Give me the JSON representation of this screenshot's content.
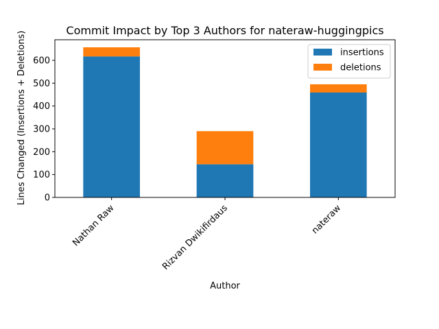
{
  "chart_data": {
    "type": "bar",
    "stacked": true,
    "title": "Commit Impact by Top 3 Authors for nateraw-huggingpics",
    "xlabel": "Author",
    "ylabel": "Lines Changed (Insertions + Deletions)",
    "categories": [
      "Nathan Raw",
      "Rizvan Dwikifirdaus",
      "nateraw"
    ],
    "series": [
      {
        "name": "insertions",
        "values": [
          617,
          145,
          459
        ],
        "color": "#1f77b4"
      },
      {
        "name": "deletions",
        "values": [
          40,
          145,
          36
        ],
        "color": "#ff7f0e"
      }
    ],
    "ylim": [
      0,
      690
    ],
    "yticks": [
      0,
      100,
      200,
      300,
      400,
      500,
      600
    ],
    "legend_position": "top-right",
    "grid": false
  }
}
